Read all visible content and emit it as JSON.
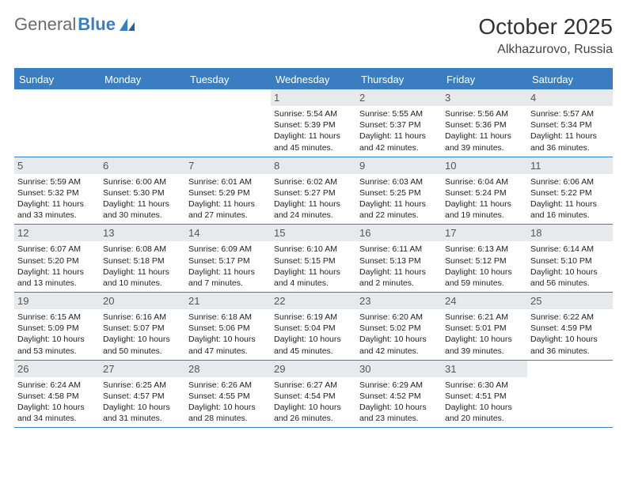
{
  "logo": {
    "text1": "General",
    "text2": "Blue"
  },
  "title": "October 2025",
  "location": "Alkhazurovo, Russia",
  "colors": {
    "accent": "#3a7ec1",
    "daynum_bg": "#e7eaec",
    "text": "#222222",
    "grey_text": "#6b6b6b"
  },
  "day_headers": [
    "Sunday",
    "Monday",
    "Tuesday",
    "Wednesday",
    "Thursday",
    "Friday",
    "Saturday"
  ],
  "weeks": [
    [
      {
        "empty": true
      },
      {
        "empty": true
      },
      {
        "empty": true
      },
      {
        "day": "1",
        "sunrise": "Sunrise: 5:54 AM",
        "sunset": "Sunset: 5:39 PM",
        "daylight": "Daylight: 11 hours and 45 minutes."
      },
      {
        "day": "2",
        "sunrise": "Sunrise: 5:55 AM",
        "sunset": "Sunset: 5:37 PM",
        "daylight": "Daylight: 11 hours and 42 minutes."
      },
      {
        "day": "3",
        "sunrise": "Sunrise: 5:56 AM",
        "sunset": "Sunset: 5:36 PM",
        "daylight": "Daylight: 11 hours and 39 minutes."
      },
      {
        "day": "4",
        "sunrise": "Sunrise: 5:57 AM",
        "sunset": "Sunset: 5:34 PM",
        "daylight": "Daylight: 11 hours and 36 minutes."
      }
    ],
    [
      {
        "day": "5",
        "sunrise": "Sunrise: 5:59 AM",
        "sunset": "Sunset: 5:32 PM",
        "daylight": "Daylight: 11 hours and 33 minutes."
      },
      {
        "day": "6",
        "sunrise": "Sunrise: 6:00 AM",
        "sunset": "Sunset: 5:30 PM",
        "daylight": "Daylight: 11 hours and 30 minutes."
      },
      {
        "day": "7",
        "sunrise": "Sunrise: 6:01 AM",
        "sunset": "Sunset: 5:29 PM",
        "daylight": "Daylight: 11 hours and 27 minutes."
      },
      {
        "day": "8",
        "sunrise": "Sunrise: 6:02 AM",
        "sunset": "Sunset: 5:27 PM",
        "daylight": "Daylight: 11 hours and 24 minutes."
      },
      {
        "day": "9",
        "sunrise": "Sunrise: 6:03 AM",
        "sunset": "Sunset: 5:25 PM",
        "daylight": "Daylight: 11 hours and 22 minutes."
      },
      {
        "day": "10",
        "sunrise": "Sunrise: 6:04 AM",
        "sunset": "Sunset: 5:24 PM",
        "daylight": "Daylight: 11 hours and 19 minutes."
      },
      {
        "day": "11",
        "sunrise": "Sunrise: 6:06 AM",
        "sunset": "Sunset: 5:22 PM",
        "daylight": "Daylight: 11 hours and 16 minutes."
      }
    ],
    [
      {
        "day": "12",
        "sunrise": "Sunrise: 6:07 AM",
        "sunset": "Sunset: 5:20 PM",
        "daylight": "Daylight: 11 hours and 13 minutes."
      },
      {
        "day": "13",
        "sunrise": "Sunrise: 6:08 AM",
        "sunset": "Sunset: 5:18 PM",
        "daylight": "Daylight: 11 hours and 10 minutes."
      },
      {
        "day": "14",
        "sunrise": "Sunrise: 6:09 AM",
        "sunset": "Sunset: 5:17 PM",
        "daylight": "Daylight: 11 hours and 7 minutes."
      },
      {
        "day": "15",
        "sunrise": "Sunrise: 6:10 AM",
        "sunset": "Sunset: 5:15 PM",
        "daylight": "Daylight: 11 hours and 4 minutes."
      },
      {
        "day": "16",
        "sunrise": "Sunrise: 6:11 AM",
        "sunset": "Sunset: 5:13 PM",
        "daylight": "Daylight: 11 hours and 2 minutes."
      },
      {
        "day": "17",
        "sunrise": "Sunrise: 6:13 AM",
        "sunset": "Sunset: 5:12 PM",
        "daylight": "Daylight: 10 hours and 59 minutes."
      },
      {
        "day": "18",
        "sunrise": "Sunrise: 6:14 AM",
        "sunset": "Sunset: 5:10 PM",
        "daylight": "Daylight: 10 hours and 56 minutes."
      }
    ],
    [
      {
        "day": "19",
        "sunrise": "Sunrise: 6:15 AM",
        "sunset": "Sunset: 5:09 PM",
        "daylight": "Daylight: 10 hours and 53 minutes."
      },
      {
        "day": "20",
        "sunrise": "Sunrise: 6:16 AM",
        "sunset": "Sunset: 5:07 PM",
        "daylight": "Daylight: 10 hours and 50 minutes."
      },
      {
        "day": "21",
        "sunrise": "Sunrise: 6:18 AM",
        "sunset": "Sunset: 5:06 PM",
        "daylight": "Daylight: 10 hours and 47 minutes."
      },
      {
        "day": "22",
        "sunrise": "Sunrise: 6:19 AM",
        "sunset": "Sunset: 5:04 PM",
        "daylight": "Daylight: 10 hours and 45 minutes."
      },
      {
        "day": "23",
        "sunrise": "Sunrise: 6:20 AM",
        "sunset": "Sunset: 5:02 PM",
        "daylight": "Daylight: 10 hours and 42 minutes."
      },
      {
        "day": "24",
        "sunrise": "Sunrise: 6:21 AM",
        "sunset": "Sunset: 5:01 PM",
        "daylight": "Daylight: 10 hours and 39 minutes."
      },
      {
        "day": "25",
        "sunrise": "Sunrise: 6:22 AM",
        "sunset": "Sunset: 4:59 PM",
        "daylight": "Daylight: 10 hours and 36 minutes."
      }
    ],
    [
      {
        "day": "26",
        "sunrise": "Sunrise: 6:24 AM",
        "sunset": "Sunset: 4:58 PM",
        "daylight": "Daylight: 10 hours and 34 minutes."
      },
      {
        "day": "27",
        "sunrise": "Sunrise: 6:25 AM",
        "sunset": "Sunset: 4:57 PM",
        "daylight": "Daylight: 10 hours and 31 minutes."
      },
      {
        "day": "28",
        "sunrise": "Sunrise: 6:26 AM",
        "sunset": "Sunset: 4:55 PM",
        "daylight": "Daylight: 10 hours and 28 minutes."
      },
      {
        "day": "29",
        "sunrise": "Sunrise: 6:27 AM",
        "sunset": "Sunset: 4:54 PM",
        "daylight": "Daylight: 10 hours and 26 minutes."
      },
      {
        "day": "30",
        "sunrise": "Sunrise: 6:29 AM",
        "sunset": "Sunset: 4:52 PM",
        "daylight": "Daylight: 10 hours and 23 minutes."
      },
      {
        "day": "31",
        "sunrise": "Sunrise: 6:30 AM",
        "sunset": "Sunset: 4:51 PM",
        "daylight": "Daylight: 10 hours and 20 minutes."
      },
      {
        "empty": true
      }
    ]
  ]
}
